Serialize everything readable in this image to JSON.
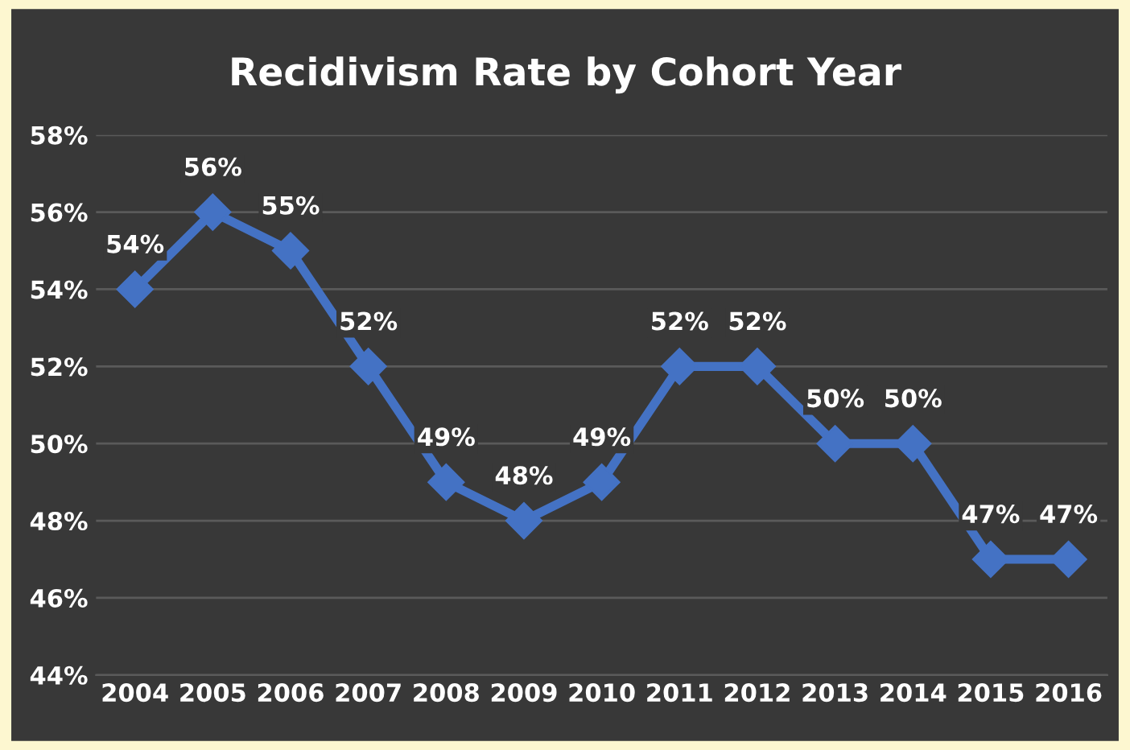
{
  "chart_data": {
    "type": "line",
    "title": "Recidivism Rate by Cohort Year",
    "categories": [
      "2004",
      "2005",
      "2006",
      "2007",
      "2008",
      "2009",
      "2010",
      "2011",
      "2012",
      "2013",
      "2014",
      "2015",
      "2016"
    ],
    "series": [
      {
        "color": "#4472c4",
        "values": [
          54,
          56,
          55,
          52,
          49,
          48,
          49,
          52,
          52,
          50,
          50,
          47,
          47
        ],
        "value_labels": [
          "54%",
          "56%",
          "55%",
          "52%",
          "49%",
          "48%",
          "49%",
          "52%",
          "52%",
          "50%",
          "50%",
          "47%",
          "47%"
        ]
      }
    ],
    "ylim": [
      44,
      58
    ],
    "yticks": [
      {
        "value": 44,
        "label": "44%"
      },
      {
        "value": 46,
        "label": "46%"
      },
      {
        "value": 48,
        "label": "48%"
      },
      {
        "value": 50,
        "label": "50%"
      },
      {
        "value": 52,
        "label": "52%"
      },
      {
        "value": 54,
        "label": "54%"
      },
      {
        "value": 56,
        "label": "56%"
      },
      {
        "value": 58,
        "label": "58%"
      }
    ],
    "grid": "y",
    "marker": "diamond",
    "line_style": "solid"
  }
}
